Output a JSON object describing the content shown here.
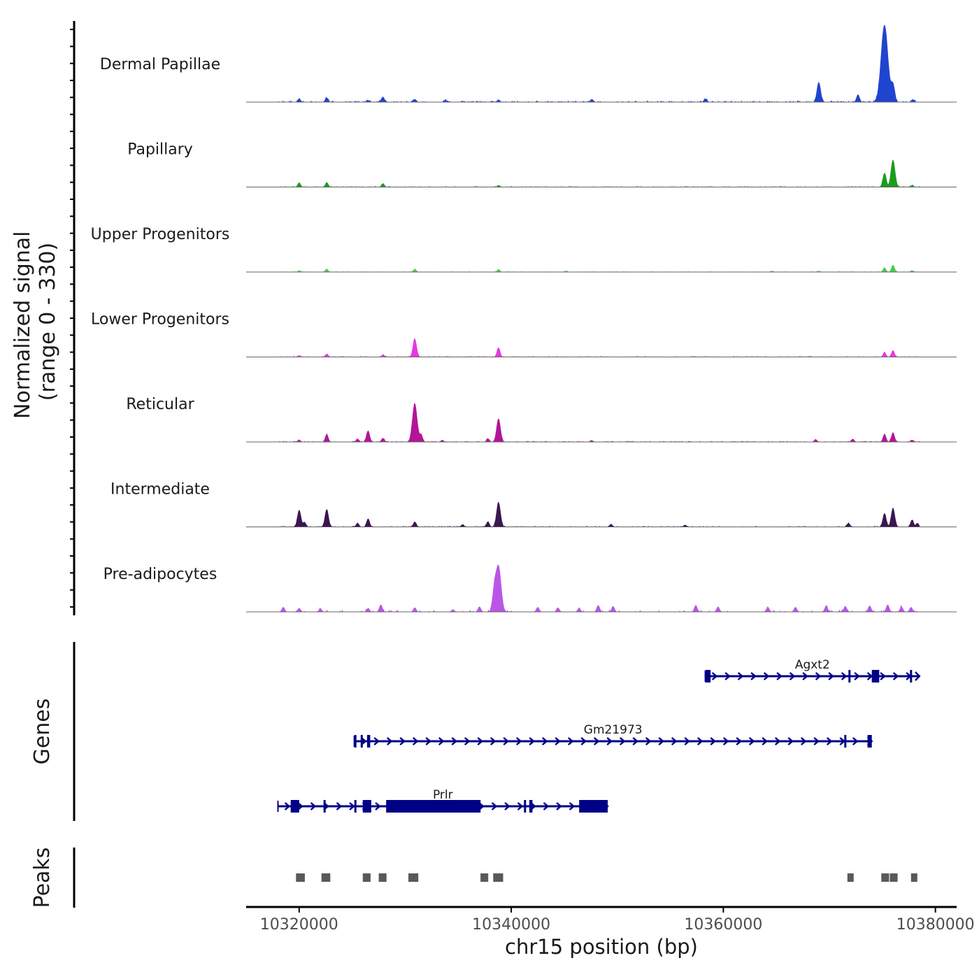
{
  "chart_data": {
    "type": "area",
    "region": "chr15",
    "x_range": [
      10315000,
      10382000
    ],
    "data_extent": [
      10318000,
      10378500
    ],
    "ylabel": "Normalized signal\n(range 0 - 330)",
    "y_range": [
      0,
      330
    ],
    "xlabel": "chr15 position (bp)",
    "x_ticks": [
      10320000,
      10340000,
      10360000,
      10380000
    ],
    "x_tick_labels": [
      "10320000",
      "10340000",
      "10360000",
      "10380000"
    ],
    "tracks": [
      {
        "name": "Dermal Papillae",
        "color": "#1f44cf",
        "noise": 5,
        "sparse": false,
        "peaks": [
          [
            10320000,
            12
          ],
          [
            10322600,
            18
          ],
          [
            10326500,
            8
          ],
          [
            10327900,
            22
          ],
          [
            10330900,
            10
          ],
          [
            10333800,
            8
          ],
          [
            10338800,
            10
          ],
          [
            10347600,
            12
          ],
          [
            10358300,
            14
          ],
          [
            10369000,
            85
          ],
          [
            10372700,
            32
          ],
          [
            10375200,
            330
          ],
          [
            10376000,
            70
          ],
          [
            10377900,
            10
          ]
        ]
      },
      {
        "name": "Papillary",
        "color": "#1c9c1c",
        "noise": 3,
        "sparse": false,
        "peaks": [
          [
            10320000,
            18
          ],
          [
            10322600,
            20
          ],
          [
            10327900,
            15
          ],
          [
            10338800,
            6
          ],
          [
            10375200,
            60
          ],
          [
            10376000,
            115
          ],
          [
            10377800,
            8
          ]
        ]
      },
      {
        "name": "Upper Progenitors",
        "color": "#4ec94e",
        "noise": 2,
        "sparse": false,
        "peaks": [
          [
            10320000,
            6
          ],
          [
            10322600,
            12
          ],
          [
            10330900,
            12
          ],
          [
            10338800,
            10
          ],
          [
            10345200,
            4
          ],
          [
            10364600,
            4
          ],
          [
            10369000,
            4
          ],
          [
            10375200,
            18
          ],
          [
            10376000,
            30
          ],
          [
            10377800,
            6
          ]
        ]
      },
      {
        "name": "Lower Progenitors",
        "color": "#e43ae0",
        "noise": 3,
        "sparse": false,
        "peaks": [
          [
            10320000,
            6
          ],
          [
            10322600,
            12
          ],
          [
            10327900,
            10
          ],
          [
            10330900,
            78
          ],
          [
            10338800,
            40
          ],
          [
            10375200,
            20
          ],
          [
            10376000,
            28
          ]
        ]
      },
      {
        "name": "Reticular",
        "color": "#b3149a",
        "noise": 3,
        "sparse": false,
        "peaks": [
          [
            10320000,
            8
          ],
          [
            10322600,
            32
          ],
          [
            10325500,
            12
          ],
          [
            10326500,
            48
          ],
          [
            10327900,
            16
          ],
          [
            10330900,
            165
          ],
          [
            10331500,
            30
          ],
          [
            10333500,
            8
          ],
          [
            10337800,
            14
          ],
          [
            10338800,
            100
          ],
          [
            10347600,
            6
          ],
          [
            10368700,
            10
          ],
          [
            10372200,
            12
          ],
          [
            10375200,
            32
          ],
          [
            10376000,
            40
          ],
          [
            10377800,
            8
          ]
        ]
      },
      {
        "name": "Intermediate",
        "color": "#3d1550",
        "noise": 3,
        "sparse": false,
        "peaks": [
          [
            10320000,
            72
          ],
          [
            10320500,
            20
          ],
          [
            10322600,
            75
          ],
          [
            10325500,
            16
          ],
          [
            10326500,
            35
          ],
          [
            10330900,
            22
          ],
          [
            10335400,
            10
          ],
          [
            10337800,
            22
          ],
          [
            10338800,
            105
          ],
          [
            10349400,
            10
          ],
          [
            10356400,
            8
          ],
          [
            10371800,
            16
          ],
          [
            10375200,
            58
          ],
          [
            10376000,
            80
          ],
          [
            10377800,
            30
          ],
          [
            10378300,
            16
          ]
        ]
      },
      {
        "name": "Pre-adipocytes",
        "color": "#bb55e8",
        "noise": 5,
        "sparse": true,
        "peaks": [
          [
            10318500,
            20
          ],
          [
            10320000,
            16
          ],
          [
            10322000,
            14
          ],
          [
            10326500,
            16
          ],
          [
            10327700,
            30
          ],
          [
            10330900,
            18
          ],
          [
            10334500,
            10
          ],
          [
            10337000,
            22
          ],
          [
            10338400,
            85
          ],
          [
            10338800,
            195
          ],
          [
            10342500,
            20
          ],
          [
            10344400,
            18
          ],
          [
            10346400,
            16
          ],
          [
            10348200,
            28
          ],
          [
            10349600,
            24
          ],
          [
            10357400,
            28
          ],
          [
            10359500,
            22
          ],
          [
            10364200,
            20
          ],
          [
            10366800,
            20
          ],
          [
            10369700,
            26
          ],
          [
            10371500,
            24
          ],
          [
            10373800,
            26
          ],
          [
            10375500,
            30
          ],
          [
            10376800,
            22
          ],
          [
            10377700,
            20
          ]
        ]
      }
    ],
    "genes_label": "Genes",
    "genes": [
      {
        "name": "Agxt2",
        "start": 10358300,
        "end": 10378500,
        "strand": "+",
        "exons": [
          [
            10358300,
            10358800
          ],
          [
            10371800,
            10372000
          ],
          [
            10374000,
            10374700
          ],
          [
            10377600,
            10377800
          ]
        ]
      },
      {
        "name": "Gm21973",
        "start": 10325200,
        "end": 10374000,
        "strand": "+",
        "exons": [
          [
            10325200,
            10325400
          ],
          [
            10325800,
            10326000
          ],
          [
            10326400,
            10326700
          ],
          [
            10371400,
            10371600
          ],
          [
            10373600,
            10374000
          ]
        ]
      },
      {
        "name": "Prlr",
        "start": 10318000,
        "end": 10349100,
        "strand": "+",
        "exons": [
          [
            10319200,
            10320000
          ],
          [
            10322300,
            10322500
          ],
          [
            10325200,
            10325400
          ],
          [
            10326000,
            10326800
          ],
          [
            10328200,
            10337100
          ],
          [
            10341200,
            10341400
          ],
          [
            10341700,
            10342000
          ],
          [
            10346400,
            10349100
          ]
        ]
      }
    ],
    "peaks_label": "Peaks",
    "peaks": [
      [
        10319700,
        10320600
      ],
      [
        10322100,
        10323000
      ],
      [
        10326000,
        10326800
      ],
      [
        10327500,
        10328300
      ],
      [
        10330300,
        10331300
      ],
      [
        10337100,
        10337900
      ],
      [
        10338300,
        10339300
      ],
      [
        10371700,
        10372300
      ],
      [
        10374900,
        10375700
      ],
      [
        10375700,
        10376500
      ],
      [
        10377700,
        10378300
      ]
    ]
  }
}
